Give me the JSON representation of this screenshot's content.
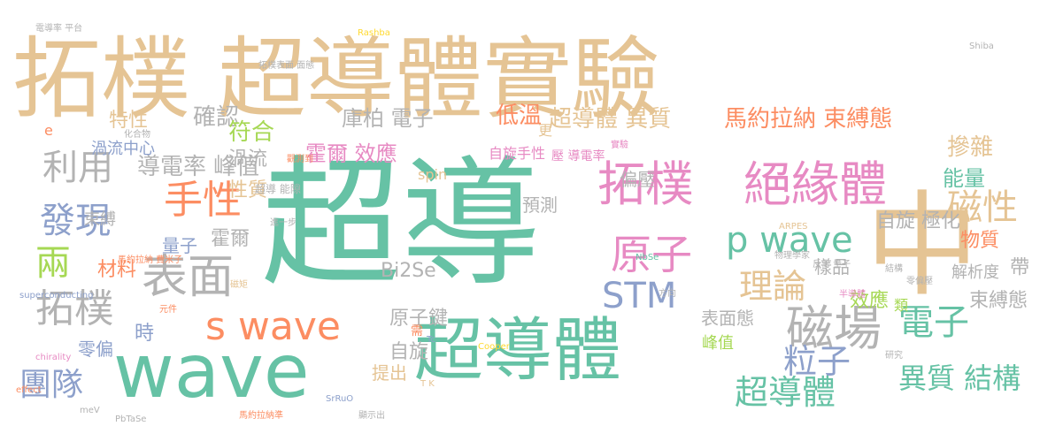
{
  "palette": {
    "green": "#66c2a5",
    "orange": "#fc8d62",
    "blue": "#8da0cb",
    "pink": "#e78ac3",
    "lime": "#a6d854",
    "yellow": "#ffd92f",
    "tan": "#e5c494",
    "gray": "#b3b3b3"
  },
  "words": [
    "拓樸 超導體實驗",
    "超導",
    "中",
    "wave",
    "超導體",
    "拓樸",
    "絕緣體",
    "磁場",
    "表面",
    "拓樸",
    "s wave",
    "p wave",
    "STM",
    "理論",
    "原子",
    "手性",
    "發現",
    "利用",
    "團隊",
    "粒子",
    "電子",
    "磁性",
    "超導體",
    "異質 結構",
    "兩",
    "導電率",
    "峰值",
    "霍爾 效應",
    "確認",
    "符合",
    "庫柏 電子",
    "低溫",
    "超導體 異質",
    "馬約拉納 束縛態",
    "摻雜",
    "特性",
    "渦流中心",
    "渦流",
    "性質",
    "能量",
    "物質",
    "解析度",
    "帶",
    "束縛態",
    "自旋 極化",
    "量子",
    "霍爾",
    "材料",
    "Bi2Se",
    "原子鍵",
    "效應",
    "表面態",
    "時",
    "零偏",
    "自旋",
    "提出",
    "峰值",
    "偏壓",
    "預測",
    "自旋手性",
    "壓 導電率",
    "spin",
    "樣品",
    "類",
    "束縛",
    "e",
    "更",
    "超導 能隙",
    "拓樸表面 面態",
    "電導率 平台",
    "馬約拉納 費米子",
    "PbTaSe",
    "NbSe",
    "SrRuO",
    "Cooper",
    "Rashba",
    "ARPES",
    "Shiba",
    "chirality",
    "superconducting",
    "effect",
    "meV",
    "Tc",
    "T K",
    "需",
    "元件",
    "方向",
    "反常 量子",
    "物理學家",
    "半導體",
    "馬約拉納準",
    "顯示出",
    "研究",
    "結構",
    "進一步",
    "化合物",
    "觀測到",
    "實驗",
    "零偏壓",
    "磁矩"
  ]
}
